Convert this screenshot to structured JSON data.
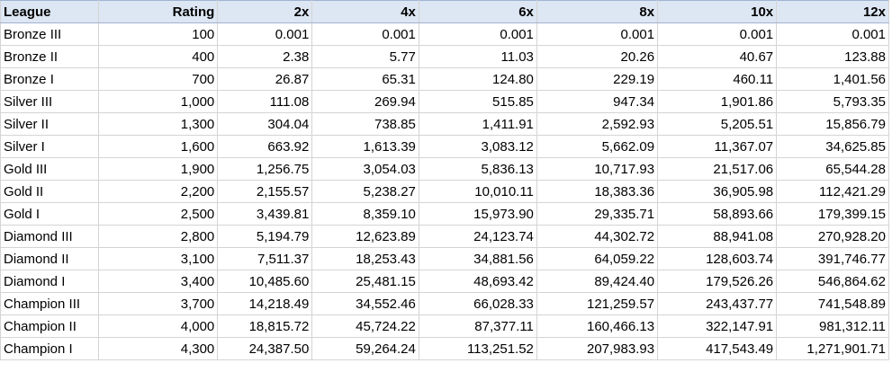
{
  "columns": [
    "League",
    "Rating",
    "2x",
    "4x",
    "6x",
    "8x",
    "10x",
    "12x"
  ],
  "rows": [
    [
      "Bronze III",
      "100",
      "0.001",
      "0.001",
      "0.001",
      "0.001",
      "0.001",
      "0.001"
    ],
    [
      "Bronze II",
      "400",
      "2.38",
      "5.77",
      "11.03",
      "20.26",
      "40.67",
      "123.88"
    ],
    [
      "Bronze I",
      "700",
      "26.87",
      "65.31",
      "124.80",
      "229.19",
      "460.11",
      "1,401.56"
    ],
    [
      "Silver III",
      "1,000",
      "111.08",
      "269.94",
      "515.85",
      "947.34",
      "1,901.86",
      "5,793.35"
    ],
    [
      "Silver II",
      "1,300",
      "304.04",
      "738.85",
      "1,411.91",
      "2,592.93",
      "5,205.51",
      "15,856.79"
    ],
    [
      "Silver I",
      "1,600",
      "663.92",
      "1,613.39",
      "3,083.12",
      "5,662.09",
      "11,367.07",
      "34,625.85"
    ],
    [
      "Gold III",
      "1,900",
      "1,256.75",
      "3,054.03",
      "5,836.13",
      "10,717.93",
      "21,517.06",
      "65,544.28"
    ],
    [
      "Gold II",
      "2,200",
      "2,155.57",
      "5,238.27",
      "10,010.11",
      "18,383.36",
      "36,905.98",
      "112,421.29"
    ],
    [
      "Gold I",
      "2,500",
      "3,439.81",
      "8,359.10",
      "15,973.90",
      "29,335.71",
      "58,893.66",
      "179,399.15"
    ],
    [
      "Diamond III",
      "2,800",
      "5,194.79",
      "12,623.89",
      "24,123.74",
      "44,302.72",
      "88,941.08",
      "270,928.20"
    ],
    [
      "Diamond II",
      "3,100",
      "7,511.37",
      "18,253.43",
      "34,881.56",
      "64,059.22",
      "128,603.74",
      "391,746.77"
    ],
    [
      "Diamond I",
      "3,400",
      "10,485.60",
      "25,481.15",
      "48,693.42",
      "89,424.40",
      "179,526.26",
      "546,864.62"
    ],
    [
      "Champion III",
      "3,700",
      "14,218.49",
      "34,552.46",
      "66,028.33",
      "121,259.57",
      "243,437.77",
      "741,548.89"
    ],
    [
      "Champion II",
      "4,000",
      "18,815.72",
      "45,724.22",
      "87,377.11",
      "160,466.13",
      "322,147.91",
      "981,312.11"
    ],
    [
      "Champion I",
      "4,300",
      "24,387.50",
      "59,264.24",
      "113,251.52",
      "207,983.93",
      "417,543.49",
      "1,271,901.71"
    ]
  ]
}
